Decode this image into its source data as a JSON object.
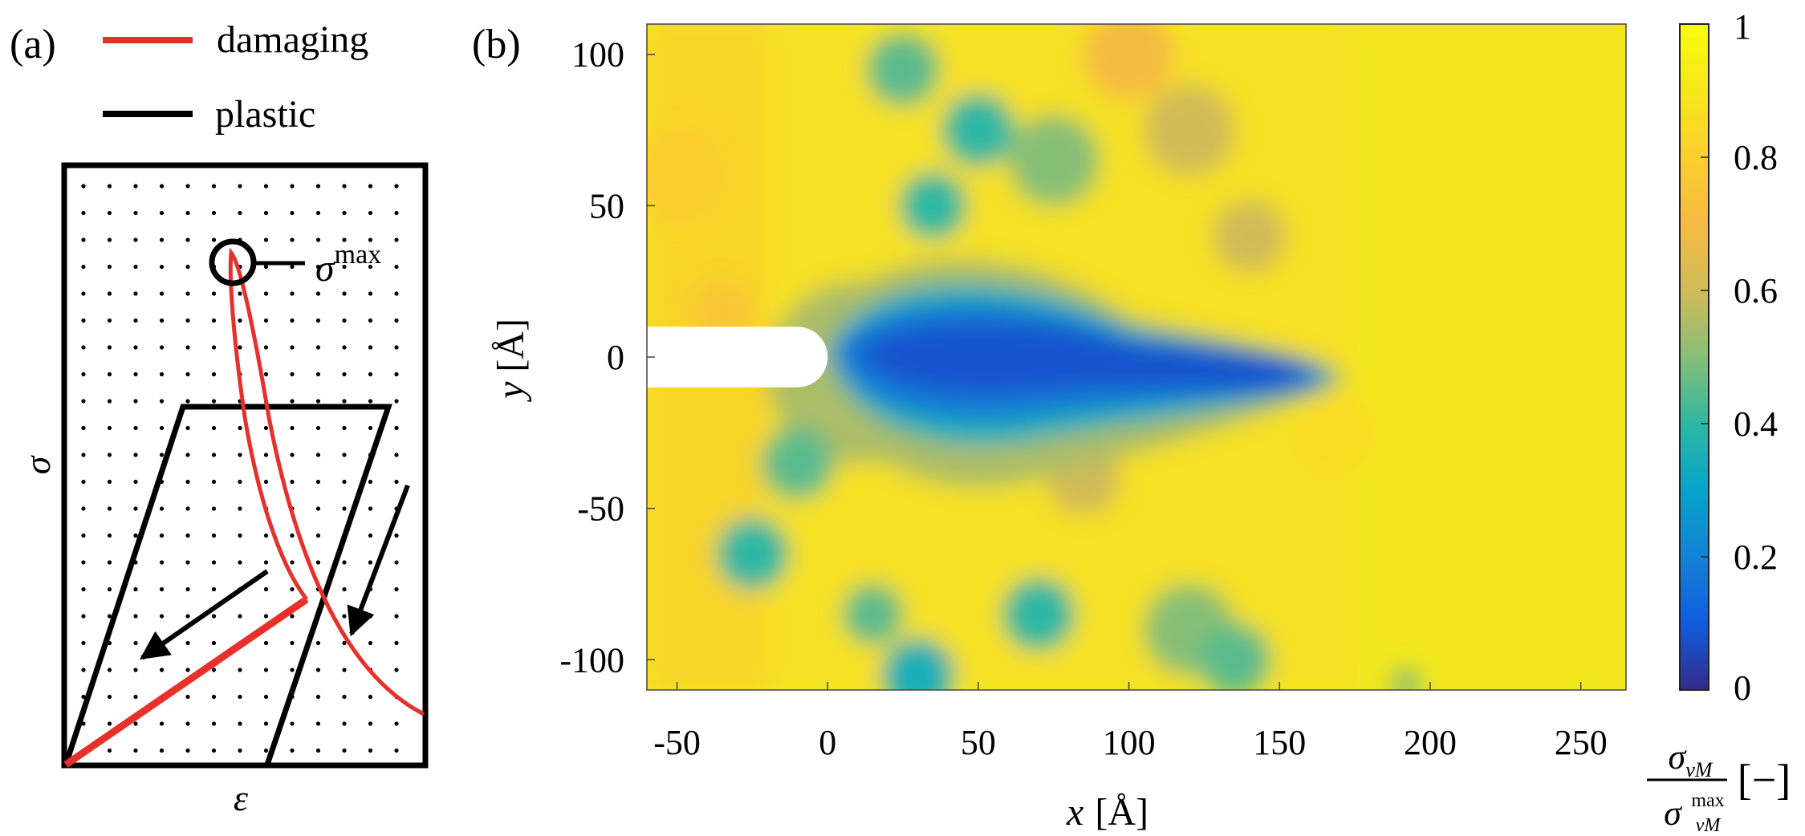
{
  "panel_a": {
    "label": "(a)",
    "legend": [
      {
        "name": "damaging",
        "color": "#e8302a"
      },
      {
        "name": "plastic",
        "color": "#000000"
      }
    ],
    "xlabel": "ε",
    "ylabel": "σ",
    "peak_label": {
      "symbol": "σ",
      "superscript": "max"
    },
    "arrows": 2
  },
  "panel_b": {
    "label": "(b)",
    "xlabel": {
      "var": "x",
      "unit": "[Å]"
    },
    "ylabel": {
      "var": "y",
      "unit": "[Å]"
    },
    "colorbar_label": {
      "num": "σ",
      "num_sub": "vM",
      "den": "σ",
      "den_sub": "vM",
      "den_sup": "max",
      "unit": "[−]"
    }
  },
  "chart_data": [
    {
      "type": "line",
      "title": "(a)",
      "xlabel": "ε",
      "ylabel": "σ",
      "grid": true,
      "legend_position": "top",
      "series": [
        {
          "name": "damaging",
          "color": "#e8302a",
          "points": [
            [
              0.0,
              0.0
            ],
            [
              0.68,
              0.27
            ],
            [
              1.0,
              0.07
            ]
          ],
          "peak": [
            0.47,
            0.85
          ]
        },
        {
          "name": "plastic",
          "color": "#000000",
          "points": [
            [
              0.0,
              0.0
            ],
            [
              0.34,
              0.6
            ],
            [
              0.93,
              0.6
            ],
            [
              0.58,
              0.0
            ]
          ]
        }
      ],
      "annotation": "σ max"
    },
    {
      "type": "heatmap",
      "title": "(b)",
      "xlabel": "x [Å]",
      "ylabel": "y [Å]",
      "xlim": [
        -60,
        265
      ],
      "ylim": [
        -110,
        110
      ],
      "xticks": [
        "-50",
        "0",
        "50",
        "100",
        "150",
        "200",
        "250"
      ],
      "xtick_values": [
        -50,
        0,
        50,
        100,
        150,
        200,
        250
      ],
      "yticks": [
        "100",
        "50",
        "0",
        "-50",
        "-100"
      ],
      "ytick_values": [
        100,
        50,
        0,
        -50,
        -100
      ],
      "colorbar": {
        "range": [
          0,
          1
        ],
        "ticks": [
          "1",
          "0.8",
          "0.6",
          "0.4",
          "0.2",
          "0"
        ],
        "tick_values": [
          1,
          0.8,
          0.6,
          0.4,
          0.2,
          0
        ],
        "colormap": "parula",
        "label": "σvM / σvM max [−]"
      },
      "crack": {
        "x_from": -60,
        "x_to": 0,
        "half_width": 10
      },
      "low_stress_band": {
        "x_from": 0,
        "x_to": 165,
        "y_center": 0,
        "min_value": 0.05
      },
      "background_value": 0.95,
      "blobs": [
        {
          "x": -35,
          "y": 15,
          "value": 0.75,
          "r": 10
        },
        {
          "x": 10,
          "y": -5,
          "value": 0.55,
          "r": 30
        },
        {
          "x": 25,
          "y": 95,
          "value": 0.45,
          "r": 12
        },
        {
          "x": 50,
          "y": 75,
          "value": 0.4,
          "r": 12
        },
        {
          "x": 35,
          "y": 50,
          "value": 0.4,
          "r": 11
        },
        {
          "x": 75,
          "y": 65,
          "value": 0.5,
          "r": 15
        },
        {
          "x": -10,
          "y": -35,
          "value": 0.45,
          "r": 12
        },
        {
          "x": -25,
          "y": -65,
          "value": 0.4,
          "r": 12
        },
        {
          "x": 15,
          "y": -85,
          "value": 0.45,
          "r": 10
        },
        {
          "x": 30,
          "y": -105,
          "value": 0.35,
          "r": 12
        },
        {
          "x": 70,
          "y": -85,
          "value": 0.4,
          "r": 12
        },
        {
          "x": 120,
          "y": -90,
          "value": 0.5,
          "r": 15
        },
        {
          "x": 135,
          "y": -100,
          "value": 0.45,
          "r": 12
        },
        {
          "x": 120,
          "y": 75,
          "value": 0.6,
          "r": 15
        },
        {
          "x": 140,
          "y": 40,
          "value": 0.6,
          "r": 12
        },
        {
          "x": 170,
          "y": -25,
          "value": 0.85,
          "r": 12
        },
        {
          "x": -50,
          "y": 60,
          "value": 0.8,
          "r": 15
        },
        {
          "x": 85,
          "y": -40,
          "value": 0.6,
          "r": 12
        },
        {
          "x": 100,
          "y": 100,
          "value": 0.7,
          "r": 15
        },
        {
          "x": 192,
          "y": -108,
          "value": 0.5,
          "r": 5
        }
      ]
    }
  ]
}
